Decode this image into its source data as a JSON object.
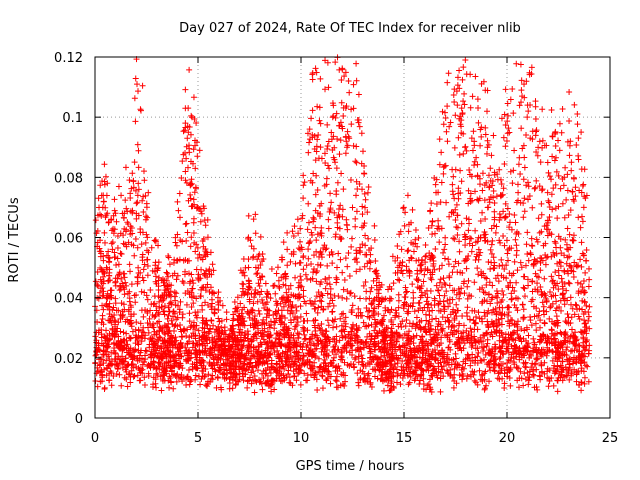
{
  "chart_data": {
    "type": "scatter",
    "title": "Day 027 of 2024, Rate Of TEC Index for receiver nlib",
    "xlabel": "GPS time / hours",
    "ylabel": "ROTI / TECUs",
    "xlim": [
      0,
      25
    ],
    "ylim": [
      0,
      0.12
    ],
    "xticks": [
      0,
      5,
      10,
      15,
      20,
      25
    ],
    "xtick_labels": [
      "0",
      "5",
      "10",
      "15",
      "20",
      "25"
    ],
    "yticks": [
      0,
      0.02,
      0.04,
      0.06,
      0.08,
      0.1,
      0.12
    ],
    "ytick_labels": [
      "0",
      "0.02",
      "0.04",
      "0.06",
      "0.08",
      "0.1",
      "0.12"
    ],
    "grid": true,
    "marker": "plus",
    "color": "#ff0000",
    "series": [
      {
        "name": "ROTI",
        "x_range": [
          0,
          24
        ],
        "baseline_range": [
          0.005,
          0.035
        ],
        "notable_peaks": [
          {
            "x": 4.5,
            "y": 0.097
          },
          {
            "x": 12.2,
            "y": 0.092
          },
          {
            "x": 17.8,
            "y": 0.103
          },
          {
            "x": 20.7,
            "y": 0.109
          },
          {
            "x": 21.0,
            "y": 0.104
          },
          {
            "x": 2.1,
            "y": 0.078
          },
          {
            "x": 0.4,
            "y": 0.074
          }
        ]
      }
    ]
  }
}
